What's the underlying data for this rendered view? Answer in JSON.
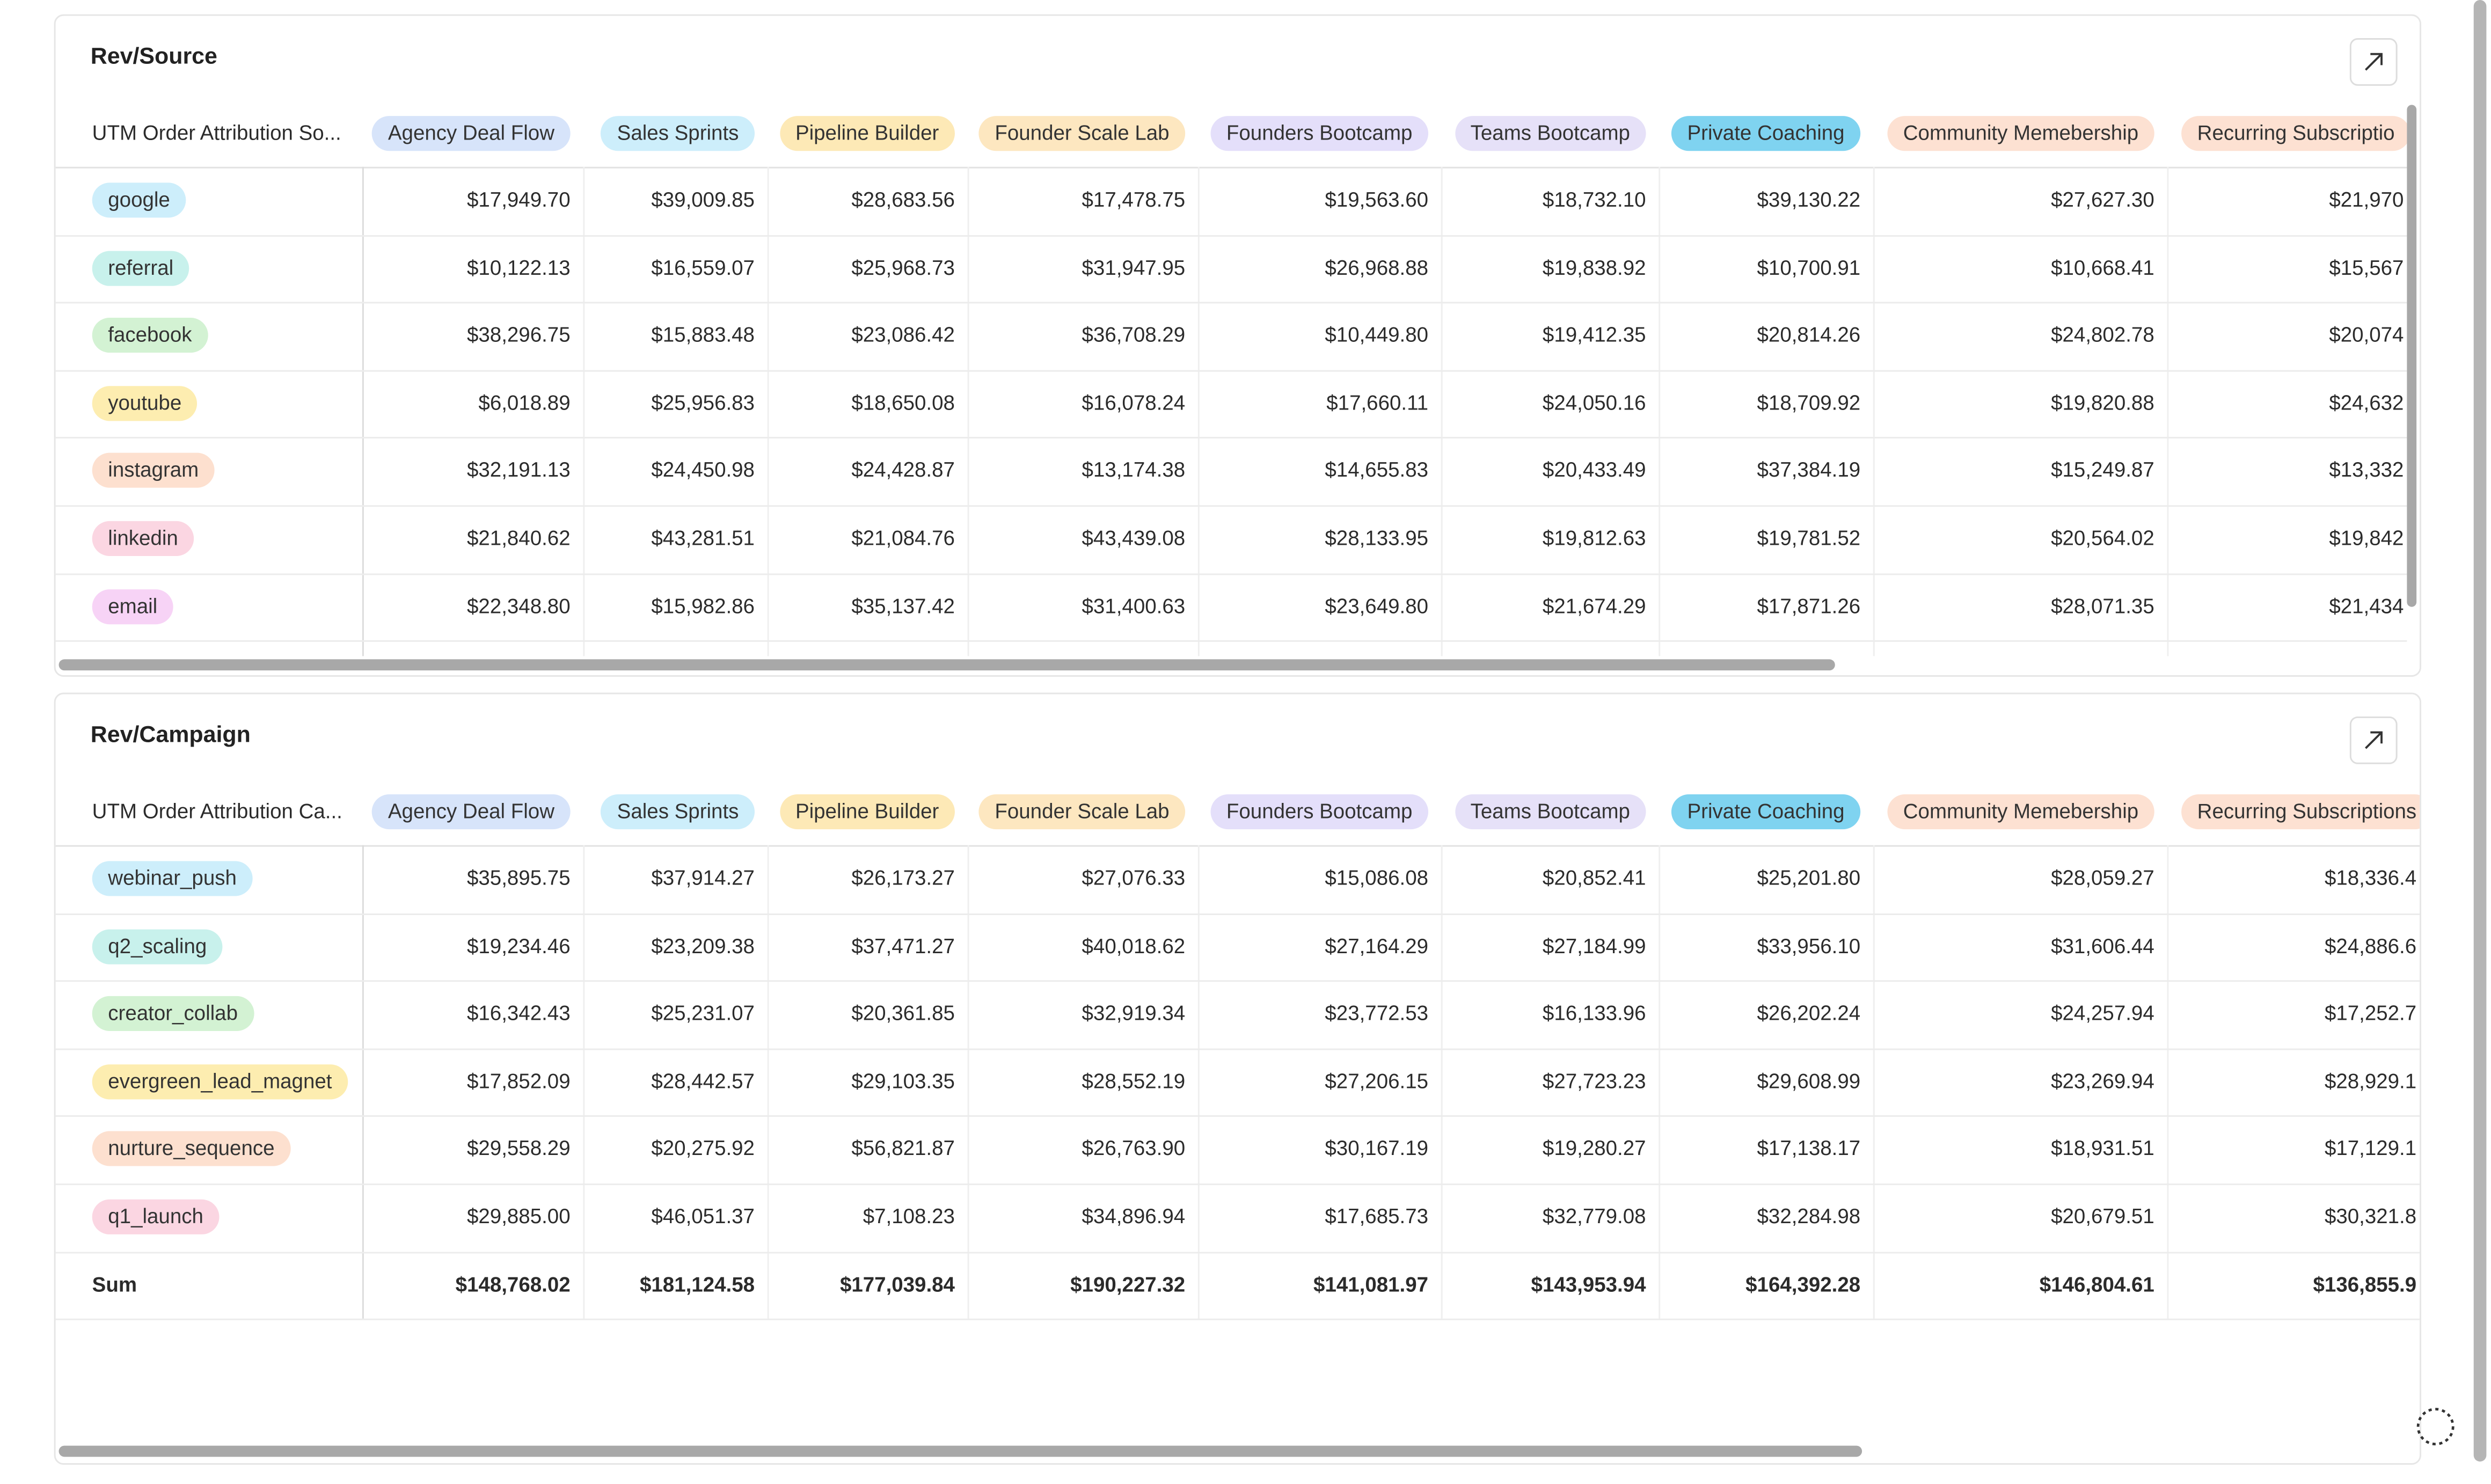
{
  "panels": [
    {
      "title": "Rev/Source",
      "header_label": "UTM Order Attribution So...",
      "columns": [
        {
          "label": "Agency Deal Flow",
          "color": "#d7e4fa"
        },
        {
          "label": "Sales Sprints",
          "color": "#cdeefb"
        },
        {
          "label": "Pipeline Builder",
          "color": "#fde9b6"
        },
        {
          "label": "Founder Scale Lab",
          "color": "#fde7c0"
        },
        {
          "label": "Founders Bootcamp",
          "color": "#e4dffa"
        },
        {
          "label": "Teams Bootcamp",
          "color": "#e6e1f8"
        },
        {
          "label": "Private Coaching",
          "color": "#7fd3f0"
        },
        {
          "label": "Community Memebership",
          "color": "#fde1d2"
        },
        {
          "label": "Recurring Subscriptio",
          "color": "#fde1d2"
        }
      ],
      "rows": [
        {
          "label": "google",
          "color": "#cdeefb",
          "cells": [
            "$17,949.70",
            "$39,009.85",
            "$28,683.56",
            "$17,478.75",
            "$19,563.60",
            "$18,732.10",
            "$39,130.22",
            "$27,627.30",
            "$21,970"
          ]
        },
        {
          "label": "referral",
          "color": "#c8f1ec",
          "cells": [
            "$10,122.13",
            "$16,559.07",
            "$25,968.73",
            "$31,947.95",
            "$26,968.88",
            "$19,838.92",
            "$10,700.91",
            "$10,668.41",
            "$15,567"
          ]
        },
        {
          "label": "facebook",
          "color": "#d3f2d3",
          "cells": [
            "$38,296.75",
            "$15,883.48",
            "$23,086.42",
            "$36,708.29",
            "$10,449.80",
            "$19,412.35",
            "$20,814.26",
            "$24,802.78",
            "$20,074"
          ]
        },
        {
          "label": "youtube",
          "color": "#fdedb0",
          "cells": [
            "$6,018.89",
            "$25,956.83",
            "$18,650.08",
            "$16,078.24",
            "$17,660.11",
            "$24,050.16",
            "$18,709.92",
            "$19,820.88",
            "$24,632"
          ]
        },
        {
          "label": "instagram",
          "color": "#fde0cf",
          "cells": [
            "$32,191.13",
            "$24,450.98",
            "$24,428.87",
            "$13,174.38",
            "$14,655.83",
            "$20,433.49",
            "$37,384.19",
            "$15,249.87",
            "$13,332"
          ]
        },
        {
          "label": "linkedin",
          "color": "#fbd6e2",
          "cells": [
            "$21,840.62",
            "$43,281.51",
            "$21,084.76",
            "$43,439.08",
            "$28,133.95",
            "$19,812.63",
            "$19,781.52",
            "$20,564.02",
            "$19,842"
          ]
        },
        {
          "label": "email",
          "color": "#f7d3f6",
          "cells": [
            "$22,348.80",
            "$15,982.86",
            "$35,137.42",
            "$31,400.63",
            "$23,649.80",
            "$21,674.29",
            "$17,871.26",
            "$28,071.35",
            "$21,434"
          ]
        }
      ]
    },
    {
      "title": "Rev/Campaign",
      "header_label": "UTM Order Attribution Ca...",
      "columns": [
        {
          "label": "Agency Deal Flow",
          "color": "#d7e4fa"
        },
        {
          "label": "Sales Sprints",
          "color": "#cdeefb"
        },
        {
          "label": "Pipeline Builder",
          "color": "#fde9b6"
        },
        {
          "label": "Founder Scale Lab",
          "color": "#fde7c0"
        },
        {
          "label": "Founders Bootcamp",
          "color": "#e4dffa"
        },
        {
          "label": "Teams Bootcamp",
          "color": "#e6e1f8"
        },
        {
          "label": "Private Coaching",
          "color": "#7fd3f0"
        },
        {
          "label": "Community Memebership",
          "color": "#fde1d2"
        },
        {
          "label": "Recurring Subscriptions",
          "color": "#fde1d2"
        }
      ],
      "rows": [
        {
          "label": "webinar_push",
          "color": "#cdeefb",
          "cells": [
            "$35,895.75",
            "$37,914.27",
            "$26,173.27",
            "$27,076.33",
            "$15,086.08",
            "$20,852.41",
            "$25,201.80",
            "$28,059.27",
            "$18,336.4"
          ]
        },
        {
          "label": "q2_scaling",
          "color": "#c8f1ec",
          "cells": [
            "$19,234.46",
            "$23,209.38",
            "$37,471.27",
            "$40,018.62",
            "$27,164.29",
            "$27,184.99",
            "$33,956.10",
            "$31,606.44",
            "$24,886.6"
          ]
        },
        {
          "label": "creator_collab",
          "color": "#d3f2d3",
          "cells": [
            "$16,342.43",
            "$25,231.07",
            "$20,361.85",
            "$32,919.34",
            "$23,772.53",
            "$16,133.96",
            "$26,202.24",
            "$24,257.94",
            "$17,252.7"
          ]
        },
        {
          "label": "evergreen_lead_magnet",
          "color": "#fdedb0",
          "cells": [
            "$17,852.09",
            "$28,442.57",
            "$29,103.35",
            "$28,552.19",
            "$27,206.15",
            "$27,723.23",
            "$29,608.99",
            "$23,269.94",
            "$28,929.1"
          ]
        },
        {
          "label": "nurture_sequence",
          "color": "#fde0cf",
          "cells": [
            "$29,558.29",
            "$20,275.92",
            "$56,821.87",
            "$26,763.90",
            "$30,167.19",
            "$19,280.27",
            "$17,138.17",
            "$18,931.51",
            "$17,129.1"
          ]
        },
        {
          "label": "q1_launch",
          "color": "#fbd6e2",
          "cells": [
            "$29,885.00",
            "$46,051.37",
            "$7,108.23",
            "$34,896.94",
            "$17,685.73",
            "$32,779.08",
            "$32,284.98",
            "$20,679.51",
            "$30,321.8"
          ]
        }
      ],
      "sum": {
        "label": "Sum",
        "cells": [
          "$148,768.02",
          "$181,124.58",
          "$177,039.84",
          "$190,227.32",
          "$141,081.97",
          "$143,953.94",
          "$164,392.28",
          "$146,804.61",
          "$136,855.9"
        ]
      }
    }
  ]
}
